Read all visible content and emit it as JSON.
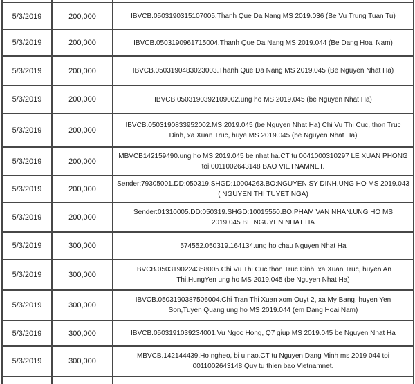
{
  "page": {
    "background_color": "#ffffff",
    "border_color": "#474747",
    "text_color": "#1e1e1e"
  },
  "table": {
    "rows": [
      {
        "date": "5/3/2019",
        "amount": "200,000",
        "description": "IBVCB.0503190315107005.Thanh Que Da Nang MS 2019.036 (Be Vu Trung Tuan Tu)"
      },
      {
        "date": "5/3/2019",
        "amount": "200,000",
        "description": "IBVCB.0503190961715004.Thanh Que Da Nang MS 2019.044 (Be Dang Hoai Nam)"
      },
      {
        "date": "5/3/2019",
        "amount": "200,000",
        "description": "IBVCB.0503190483023003.Thanh Que Da Nang MS 2019.045 (Be Nguyen Nhat Ha)"
      },
      {
        "date": "5/3/2019",
        "amount": "200,000",
        "description": "IBVCB.0503190392109002.ung ho MS 2019.045 (be Nguyen Nhat Ha)"
      },
      {
        "date": "5/3/2019",
        "amount": "200,000",
        "description": "IBVCB.0503190833952002.MS 2019.045 (be Nguyen Nhat Ha) Chi Vu Thi Cuc, thon Truc\nDinh, xa Xuan Truc, huye MS 2019.045 (be Nguyen Nhat Ha)"
      },
      {
        "date": "5/3/2019",
        "amount": "200,000",
        "description": "MBVCB142159490.ung ho MS 2019.045 be nhat ha.CT tu 0041000310297 LE XUAN PHONG\ntoi 0011002643148 BAO VIETNAMNET."
      },
      {
        "date": "5/3/2019",
        "amount": "200,000",
        "description": "Sender:79305001.DD:050319.SHGD:10004263.BO:NGUYEN SY DINH.UNG HO MS 2019.043\n( NGUYEN THI TUYET NGA)"
      },
      {
        "date": "5/3/2019",
        "amount": "200,000",
        "description": "Sender:01310005.DD:050319.SHGD:10015550.BO:PHAM VAN NHAN.UNG HO MS\n2019.045 BE NGUYEN NHAT HA"
      },
      {
        "date": "5/3/2019",
        "amount": "300,000",
        "description": "574552.050319.164134.ung ho chau Nguyen Nhat Ha"
      },
      {
        "date": "5/3/2019",
        "amount": "300,000",
        "description": "IBVCB.0503190224358005.Chi Vu Thi Cuc thon Truc Dinh, xa Xuan Truc, huyen An\nThi,HungYen ung ho MS 2019.045 (be Nguyen Nhat Ha)"
      },
      {
        "date": "5/3/2019",
        "amount": "300,000",
        "description": "IBVCB.0503190387506004.Chi Tran Thi Xuan xom Quyt 2, xa My Bang, huyen Yen\nSon,Tuyen Quang ung ho MS 2019.044 (em Dang Hoai Nam)"
      },
      {
        "date": "5/3/2019",
        "amount": "300,000",
        "description": "IBVCB.0503191039234001.Vu Ngoc Hong, Q7 giup MS 2019.045 be Nguyen Nhat Ha"
      },
      {
        "date": "5/3/2019",
        "amount": "300,000",
        "description": "MBVCB.142144439.Ho ngheo, bi u nao.CT tu Nguyen Dang Minh ms 2019 044 toi\n0011002643148 Quy tu thien bao Vietnamnet."
      }
    ]
  }
}
